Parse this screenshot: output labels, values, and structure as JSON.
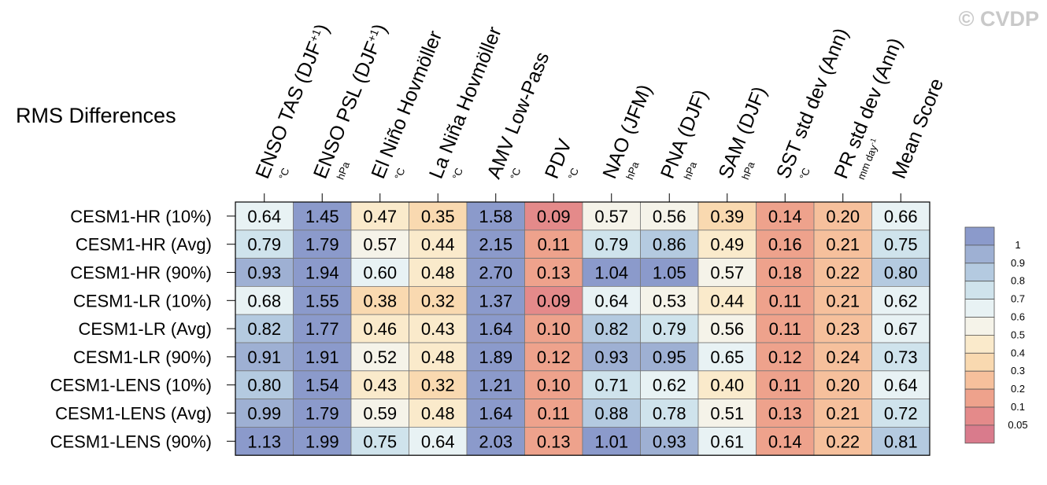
{
  "watermark": "© CVDP",
  "chart_data": {
    "type": "heatmap",
    "title": "RMS Differences",
    "columns": [
      {
        "name": "ENSO TAS (DJF+1)",
        "main": "ENSO TAS (DJF",
        "sup": "+1",
        "close": ")",
        "unit": "°C"
      },
      {
        "name": "ENSO PSL (DJF+1)",
        "main": "ENSO PSL (DJF",
        "sup": "+1",
        "close": ")",
        "unit": "hPa"
      },
      {
        "name": "El Niño Hovmöller",
        "main": "El Niño Hovmöller",
        "sup": "",
        "close": "",
        "unit": "°C"
      },
      {
        "name": "La Niña Hovmöller",
        "main": "La Niña Hovmöller",
        "sup": "",
        "close": "",
        "unit": "°C"
      },
      {
        "name": "AMV Low-Pass",
        "main": "AMV Low-Pass",
        "sup": "",
        "close": "",
        "unit": "°C"
      },
      {
        "name": "PDV",
        "main": "PDV",
        "sup": "",
        "close": "",
        "unit": "°C"
      },
      {
        "name": "NAO (JFM)",
        "main": "NAO (JFM)",
        "sup": "",
        "close": "",
        "unit": "hPa"
      },
      {
        "name": "PNA (DJF)",
        "main": "PNA (DJF)",
        "sup": "",
        "close": "",
        "unit": "hPa"
      },
      {
        "name": "SAM (DJF)",
        "main": "SAM (DJF)",
        "sup": "",
        "close": "",
        "unit": "hPa"
      },
      {
        "name": "SST std dev (Ann)",
        "main": "SST std dev (Ann)",
        "sup": "",
        "close": "",
        "unit": "°C"
      },
      {
        "name": "PR std dev (Ann)",
        "main": "PR std dev (Ann)",
        "sup": "",
        "close": "",
        "unit": "mm day-1"
      },
      {
        "name": "Mean Score",
        "main": "Mean Score",
        "sup": "",
        "close": "",
        "unit": ""
      }
    ],
    "rows": [
      "CESM1-HR (10%)",
      "CESM1-HR (Avg)",
      "CESM1-HR (90%)",
      "CESM1-LR (10%)",
      "CESM1-LR (Avg)",
      "CESM1-LR (90%)",
      "CESM1-LENS (10%)",
      "CESM1-LENS (Avg)",
      "CESM1-LENS (90%)"
    ],
    "values": [
      [
        "0.64",
        "1.45",
        "0.47",
        "0.35",
        "1.58",
        "0.09",
        "0.57",
        "0.56",
        "0.39",
        "0.14",
        "0.20",
        "0.66"
      ],
      [
        "0.79",
        "1.79",
        "0.57",
        "0.44",
        "2.15",
        "0.11",
        "0.79",
        "0.86",
        "0.49",
        "0.16",
        "0.21",
        "0.75"
      ],
      [
        "0.93",
        "1.94",
        "0.60",
        "0.48",
        "2.70",
        "0.13",
        "1.04",
        "1.05",
        "0.57",
        "0.18",
        "0.22",
        "0.80"
      ],
      [
        "0.68",
        "1.55",
        "0.38",
        "0.32",
        "1.37",
        "0.09",
        "0.64",
        "0.53",
        "0.44",
        "0.11",
        "0.21",
        "0.62"
      ],
      [
        "0.82",
        "1.77",
        "0.46",
        "0.43",
        "1.64",
        "0.10",
        "0.82",
        "0.79",
        "0.56",
        "0.11",
        "0.23",
        "0.67"
      ],
      [
        "0.91",
        "1.91",
        "0.52",
        "0.48",
        "1.89",
        "0.12",
        "0.93",
        "0.95",
        "0.65",
        "0.12",
        "0.24",
        "0.73"
      ],
      [
        "0.80",
        "1.54",
        "0.43",
        "0.32",
        "1.21",
        "0.10",
        "0.71",
        "0.62",
        "0.40",
        "0.11",
        "0.20",
        "0.64"
      ],
      [
        "0.99",
        "1.79",
        "0.59",
        "0.48",
        "1.64",
        "0.11",
        "0.88",
        "0.78",
        "0.51",
        "0.13",
        "0.21",
        "0.72"
      ],
      [
        "1.13",
        "1.99",
        "0.75",
        "0.64",
        "2.03",
        "0.13",
        "1.01",
        "0.93",
        "0.61",
        "0.14",
        "0.22",
        "0.81"
      ]
    ],
    "colorbar": {
      "labels": [
        "1",
        "0.9",
        "0.8",
        "0.7",
        "0.6",
        "0.5",
        "0.4",
        "0.3",
        "0.2",
        "0.1",
        "0.05"
      ],
      "colors": [
        "#8b9acb",
        "#9eb0d3",
        "#b4cae0",
        "#cfe3ec",
        "#e8f2f4",
        "#f5f3e9",
        "#faeacb",
        "#f9d9b0",
        "#f6c09c",
        "#eea28c",
        "#e48a8a",
        "#d97b8c"
      ],
      "thresholds": [
        0.05,
        0.1,
        0.2,
        0.3,
        0.4,
        0.5,
        0.6,
        0.7,
        0.8,
        0.9,
        1
      ]
    },
    "grid": true
  }
}
